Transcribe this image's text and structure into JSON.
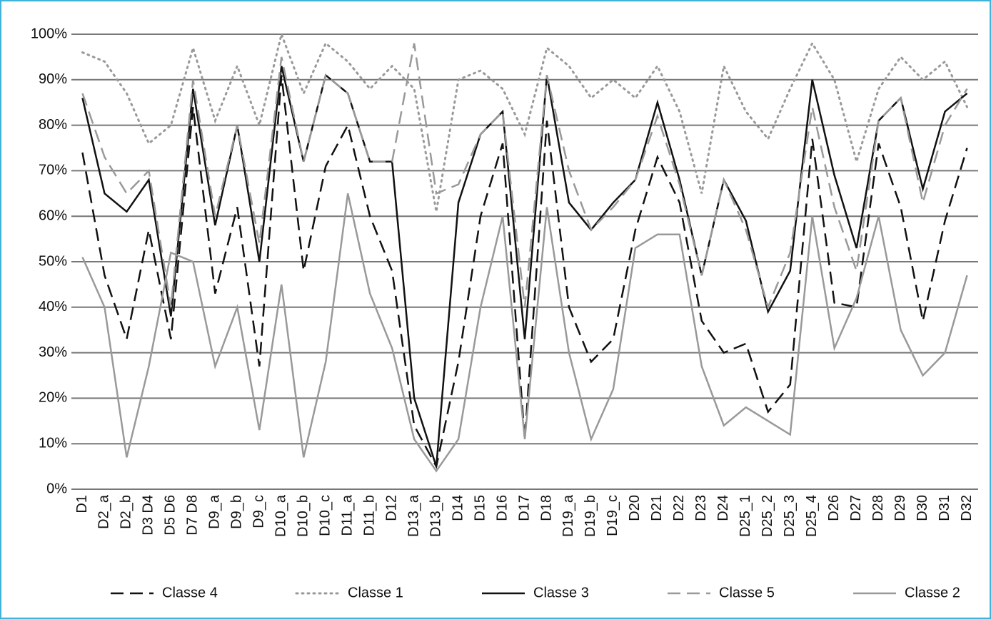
{
  "chart_data": {
    "type": "line",
    "categories": [
      "D1",
      "D2_a",
      "D2_b",
      "D3 D4",
      "D5 D6",
      "D7 D8",
      "D9_a",
      "D9_b",
      "D9_c",
      "D10_a",
      "D10_b",
      "D10_c",
      "D11_a",
      "D11_b",
      "D12",
      "D13_a",
      "D13_b",
      "D14",
      "D15",
      "D16",
      "D17",
      "D18",
      "D19_a",
      "D19_b",
      "D19_c",
      "D20",
      "D21",
      "D22",
      "D23",
      "D24",
      "D25_1",
      "D25_2",
      "D25_3",
      "D25_4",
      "D26",
      "D27",
      "D28",
      "D29",
      "D30",
      "D31",
      "D32"
    ],
    "series": [
      {
        "name": "Classe 4",
        "color": "#111111",
        "dash": "dashed",
        "values": [
          74,
          47,
          33,
          57,
          33,
          84,
          43,
          62,
          27,
          91,
          48,
          71,
          80,
          60,
          48,
          14,
          5,
          28,
          60,
          76,
          11,
          81,
          40,
          28,
          33,
          57,
          73,
          63,
          37,
          30,
          32,
          17,
          23,
          77,
          41,
          40,
          76,
          62,
          37,
          59,
          75
        ]
      },
      {
        "name": "Classe 1",
        "color": "#999999",
        "dash": "dotted",
        "values": [
          96,
          94,
          87,
          76,
          80,
          97,
          81,
          93,
          80,
          100,
          87,
          98,
          94,
          88,
          93,
          88,
          61,
          90,
          92,
          88,
          78,
          97,
          93,
          86,
          90,
          86,
          93,
          83,
          65,
          93,
          83,
          77,
          88,
          98,
          90,
          72,
          88,
          95,
          90,
          94,
          84
        ]
      },
      {
        "name": "Classe 3",
        "color": "#111111",
        "dash": "solid",
        "values": [
          86,
          65,
          61,
          68,
          38,
          88,
          58,
          80,
          50,
          93,
          72,
          91,
          87,
          72,
          72,
          20,
          5,
          63,
          78,
          83,
          33,
          91,
          63,
          57,
          63,
          68,
          85,
          68,
          47,
          68,
          59,
          39,
          48,
          90,
          69,
          53,
          81,
          86,
          66,
          83,
          87
        ]
      },
      {
        "name": "Classe 5",
        "color": "#999999",
        "dash": "dashed",
        "values": [
          87,
          73,
          65,
          70,
          40,
          90,
          60,
          80,
          54,
          95,
          72,
          91,
          87,
          72,
          72,
          98,
          65,
          67,
          78,
          83,
          40,
          91,
          70,
          57,
          62,
          68,
          82,
          67,
          47,
          68,
          57,
          40,
          52,
          84,
          62,
          48,
          81,
          86,
          63,
          80,
          88
        ]
      },
      {
        "name": "Classe 2",
        "color": "#999999",
        "dash": "solid",
        "values": [
          51,
          40,
          7,
          27,
          52,
          50,
          27,
          40,
          13,
          45,
          7,
          28,
          65,
          43,
          31,
          11,
          4,
          11,
          40,
          60,
          11,
          62,
          30,
          11,
          22,
          53,
          56,
          56,
          27,
          14,
          18,
          15,
          12,
          60,
          31,
          42,
          60,
          35,
          25,
          30,
          47
        ]
      }
    ],
    "ylim": [
      0,
      100
    ],
    "yticks": [
      {
        "value": 0,
        "label": "0%"
      },
      {
        "value": 10,
        "label": "10%"
      },
      {
        "value": 20,
        "label": "20%"
      },
      {
        "value": 30,
        "label": "30%"
      },
      {
        "value": 40,
        "label": "40%"
      },
      {
        "value": 50,
        "label": "50%"
      },
      {
        "value": 60,
        "label": "60%"
      },
      {
        "value": 70,
        "label": "70%"
      },
      {
        "value": 80,
        "label": "80%"
      },
      {
        "value": 90,
        "label": "90%"
      },
      {
        "value": 100,
        "label": "100%"
      }
    ],
    "grid": true,
    "legend": "bottom"
  }
}
